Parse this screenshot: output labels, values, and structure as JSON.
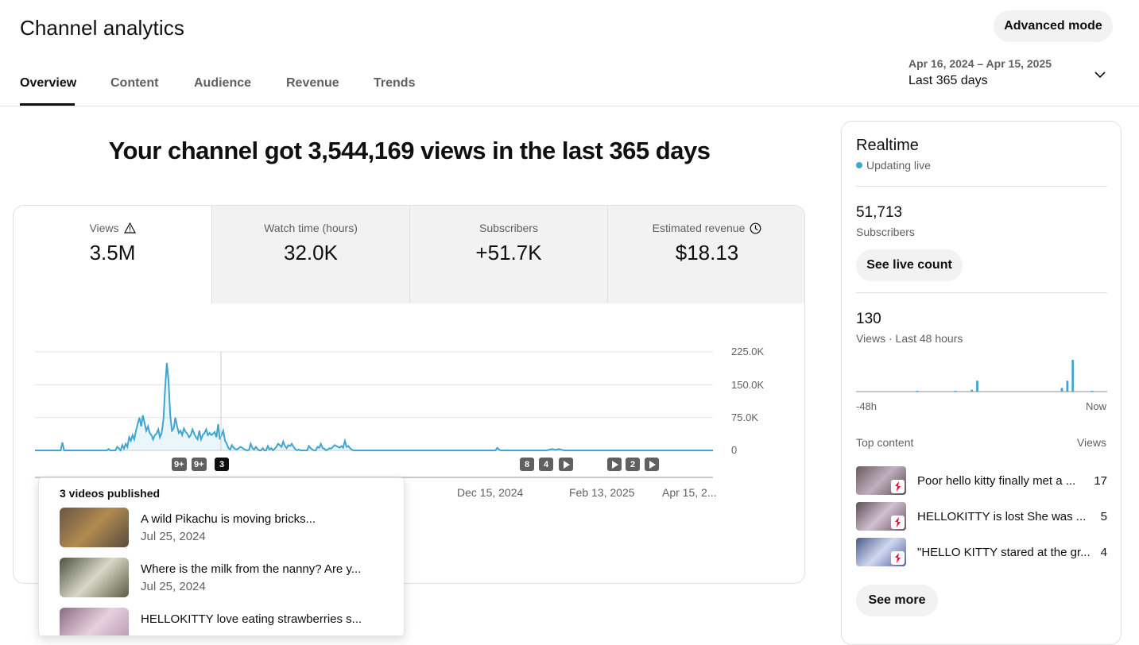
{
  "header": {
    "title": "Channel analytics",
    "advanced_mode": "Advanced mode",
    "tabs": [
      "Overview",
      "Content",
      "Audience",
      "Revenue",
      "Trends"
    ],
    "date_range": "Apr 16, 2024 – Apr 15, 2025",
    "date_label": "Last 365 days"
  },
  "headline": "Your channel got 3,544,169 views in the last 365 days",
  "metrics": [
    {
      "label": "Views",
      "value": "3.5M",
      "icon": "warning-icon"
    },
    {
      "label": "Watch time (hours)",
      "value": "32.0K"
    },
    {
      "label": "Subscribers",
      "value": "+51.7K"
    },
    {
      "label": "Estimated revenue",
      "value": "$18.13",
      "icon": "clock-icon"
    }
  ],
  "chart_data": {
    "type": "area",
    "y_ticks": [
      "225.0K",
      "150.0K",
      "75.0K",
      "0"
    ],
    "ylim": [
      0,
      225000
    ],
    "x_labels": [
      "Dec 15, 2024",
      "Feb 13, 2025",
      "Apr 15, 2..."
    ],
    "series": [
      {
        "values": [
          0,
          0,
          0,
          0,
          0,
          0,
          0,
          0,
          0,
          0,
          0,
          0,
          0,
          0,
          0,
          0,
          18000,
          0,
          0,
          0,
          0,
          0,
          0,
          0,
          0,
          0,
          0,
          0,
          0,
          0,
          0,
          0,
          0,
          0,
          0,
          0,
          0,
          0,
          0,
          0,
          0,
          0,
          0,
          3000,
          0,
          0,
          0,
          0,
          8000,
          5000,
          0,
          12000,
          4000,
          15000,
          8000,
          30000,
          22000,
          35000,
          25000,
          45000,
          60000,
          75000,
          55000,
          80000,
          62000,
          45000,
          55000,
          40000,
          35000,
          25000,
          35000,
          38000,
          48000,
          30000,
          40000,
          70000,
          140000,
          200000,
          160000,
          80000,
          45000,
          50000,
          75000,
          55000,
          40000,
          45000,
          35000,
          50000,
          42000,
          38000,
          30000,
          35000,
          48000,
          38000,
          30000,
          25000,
          45000,
          25000,
          35000,
          40000,
          48000,
          35000,
          40000,
          35000,
          38000,
          42000,
          30000,
          60000,
          25000,
          35000,
          45000,
          22000,
          15000,
          5000,
          2000,
          12000,
          6000,
          3000,
          2000,
          5000,
          8000,
          6000,
          3000,
          1000,
          0,
          1000,
          15000,
          5000,
          2000,
          8000,
          3000,
          0,
          0,
          5000,
          0,
          0,
          10000,
          2000,
          5000,
          0,
          4000,
          8000,
          15000,
          12000,
          8000,
          20000,
          10000,
          5000,
          12000,
          10000,
          15000,
          8000,
          3000,
          0,
          2000,
          0,
          0,
          0,
          0,
          0,
          10000,
          5000,
          2000,
          0,
          0,
          8000,
          6000,
          15000,
          5000,
          4000,
          0,
          2000,
          5000,
          4000,
          8000,
          12000,
          10000,
          8000,
          6000,
          10000,
          6000,
          22000,
          8000,
          10000,
          5000,
          2000,
          0,
          0,
          0,
          0,
          0,
          0,
          0,
          0,
          0,
          0,
          0,
          0,
          0,
          0,
          0,
          0,
          0,
          0,
          0,
          0,
          0,
          0,
          0,
          0,
          0,
          0,
          0,
          0,
          0,
          0,
          0,
          0,
          0,
          0,
          0,
          0,
          0,
          0,
          0,
          0,
          0,
          0,
          0,
          0,
          0,
          0,
          0,
          0,
          0,
          0,
          0,
          0,
          0,
          0,
          0,
          0,
          0,
          0,
          0,
          0,
          0,
          0,
          0,
          0,
          0,
          0,
          0,
          0,
          0,
          0,
          0,
          0,
          0,
          0,
          0,
          0,
          0,
          0,
          0,
          0,
          0,
          0,
          0,
          0,
          6000,
          2000,
          0,
          0,
          0,
          0,
          0,
          0,
          0,
          0,
          0,
          0,
          0,
          0,
          0,
          0,
          0,
          0,
          0,
          0,
          0,
          0,
          0,
          0,
          0,
          0,
          0,
          0,
          0,
          0,
          1000,
          2000,
          3000,
          2000,
          1000,
          2000,
          3000,
          2000,
          1000,
          0,
          0,
          0,
          0,
          0,
          0,
          0,
          0,
          0,
          0,
          0,
          0,
          0,
          0,
          0,
          0,
          0,
          0,
          0,
          0,
          0,
          0,
          0,
          0,
          0,
          0,
          0,
          0,
          0,
          0,
          0,
          0,
          0,
          0,
          0,
          0,
          0,
          0,
          0,
          0,
          0,
          0,
          0,
          0,
          0,
          0,
          0,
          0,
          0,
          0,
          0,
          0,
          0,
          0,
          0,
          0,
          0,
          0,
          0,
          0,
          0,
          0,
          0,
          0,
          0,
          0,
          0,
          0,
          0,
          0,
          0,
          0,
          0,
          0,
          0,
          0,
          0,
          0,
          0,
          0,
          0,
          0,
          0,
          0,
          0,
          0,
          0,
          0
        ]
      }
    ]
  },
  "markers": [
    {
      "label": "9+",
      "style": "grey"
    },
    {
      "label": "9+",
      "style": "grey"
    },
    {
      "label": "3",
      "style": "dark"
    },
    {
      "label": "8",
      "style": "grey"
    },
    {
      "label": "4",
      "style": "grey"
    },
    {
      "label": "",
      "style": "play"
    },
    {
      "label": "",
      "style": "play"
    },
    {
      "label": "2",
      "style": "grey"
    },
    {
      "label": "",
      "style": "play"
    }
  ],
  "popup": {
    "title": "3 videos published",
    "items": [
      {
        "title": "A wild Pikachu is moving bricks...",
        "date": "Jul 25, 2024",
        "thumb_color": "#8a6a4a"
      },
      {
        "title": "Where is the milk from the nanny? Are y...",
        "date": "Jul 25, 2024",
        "thumb_color": "#6b6e4e"
      },
      {
        "title": "HELLOKITTY love eating strawberries s...",
        "date": "",
        "thumb_color": "#a07890"
      }
    ]
  },
  "realtime": {
    "title": "Realtime",
    "status": "Updating live",
    "subscribers_value": "51,713",
    "subscribers_label": "Subscribers",
    "live_count_button": "See live count",
    "views_value": "130",
    "views_label": "Views · Last 48 hours",
    "bars": [
      0,
      0,
      0,
      0,
      0,
      0,
      0,
      0,
      0,
      0,
      0,
      0,
      0,
      0,
      0,
      0,
      0,
      0,
      0,
      0,
      0,
      0,
      1,
      0,
      0,
      0,
      0,
      0,
      0,
      0,
      0,
      0,
      0,
      0,
      0,
      0,
      1,
      0,
      0,
      0,
      0,
      0,
      2,
      0,
      12,
      0,
      0,
      0,
      0,
      0,
      0,
      0,
      0,
      0,
      0,
      0,
      0,
      0,
      0,
      0,
      0,
      0,
      0,
      0,
      0,
      0,
      0,
      0,
      0,
      0,
      0,
      0,
      0,
      0,
      0,
      4,
      0,
      12,
      0,
      35,
      0,
      0,
      0,
      0,
      0,
      0,
      1,
      0,
      0,
      0,
      0,
      0
    ],
    "axis_start": "-48h",
    "axis_end": "Now",
    "top_content_label": "Top content",
    "views_col_label": "Views",
    "top_content": [
      {
        "title": "Poor hello kitty finally met a ...",
        "views": "17",
        "thumb_color": "#7a6a6a"
      },
      {
        "title": "HELLOKITTY is lost She was ...",
        "views": "5",
        "thumb_color": "#6e5e66"
      },
      {
        "title": "\"HELLO KITTY stared at the gr...",
        "views": "4",
        "thumb_color": "#5a6a9a"
      }
    ],
    "see_more": "See more"
  },
  "colors": {
    "accent": "#3ea6d0",
    "live_dot": "#3ea6d0",
    "shorts_red": "#ff0033"
  }
}
